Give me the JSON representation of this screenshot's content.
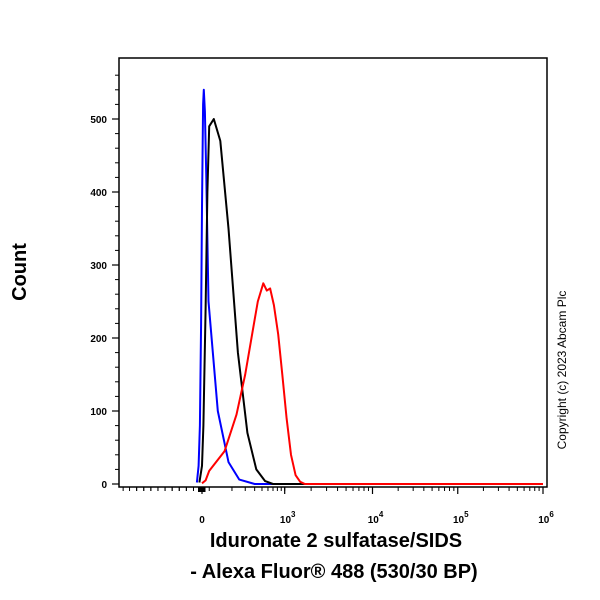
{
  "chart_data": {
    "type": "line",
    "xlabel_lines": [
      "Iduronate 2 sulfatase/SIDS",
      "- Alexa Fluor® 488 (530/30 BP)"
    ],
    "ylabel": "Count",
    "ylim": [
      0,
      600
    ],
    "y_ticks": [
      0,
      100,
      200,
      300,
      400,
      500
    ],
    "x_scale": "biexponential",
    "x_ticks": [
      {
        "value": 0,
        "label": "0",
        "exp": ""
      },
      {
        "value": 1000,
        "label": "10",
        "exp": "3"
      },
      {
        "value": 10000,
        "label": "10",
        "exp": "4"
      },
      {
        "value": 100000,
        "label": "10",
        "exp": "5"
      },
      {
        "value": 1000000,
        "label": "10",
        "exp": "6"
      }
    ],
    "series": [
      {
        "color": "#0000ff",
        "points": [
          [
            -2000,
            0
          ],
          [
            -60,
            2
          ],
          [
            -40,
            25
          ],
          [
            -25,
            80
          ],
          [
            -10,
            220
          ],
          [
            0,
            380
          ],
          [
            15,
            520
          ],
          [
            25,
            540
          ],
          [
            40,
            510
          ],
          [
            60,
            420
          ],
          [
            90,
            250
          ],
          [
            130,
            100
          ],
          [
            180,
            30
          ],
          [
            250,
            6
          ],
          [
            400,
            0
          ],
          [
            1000000,
            0
          ]
        ]
      },
      {
        "color": "#000000",
        "points": [
          [
            -2000,
            0
          ],
          [
            -30,
            2
          ],
          [
            0,
            25
          ],
          [
            20,
            80
          ],
          [
            50,
            240
          ],
          [
            75,
            400
          ],
          [
            100,
            490
          ],
          [
            115,
            500
          ],
          [
            140,
            470
          ],
          [
            180,
            350
          ],
          [
            240,
            180
          ],
          [
            320,
            70
          ],
          [
            420,
            20
          ],
          [
            550,
            4
          ],
          [
            700,
            0
          ],
          [
            1000000,
            0
          ]
        ]
      },
      {
        "color": "#ff0000",
        "points": [
          [
            -2000,
            0
          ],
          [
            0,
            1
          ],
          [
            50,
            5
          ],
          [
            100,
            18
          ],
          [
            160,
            45
          ],
          [
            230,
            95
          ],
          [
            300,
            150
          ],
          [
            370,
            205
          ],
          [
            440,
            250
          ],
          [
            520,
            275
          ],
          [
            580,
            265
          ],
          [
            640,
            268
          ],
          [
            720,
            245
          ],
          [
            820,
            205
          ],
          [
            930,
            150
          ],
          [
            1050,
            90
          ],
          [
            1180,
            40
          ],
          [
            1330,
            12
          ],
          [
            1500,
            3
          ],
          [
            1700,
            0
          ],
          [
            1000000,
            0
          ]
        ]
      }
    ]
  },
  "copyright": "Copyright (c) 2023 Abcam Plc"
}
